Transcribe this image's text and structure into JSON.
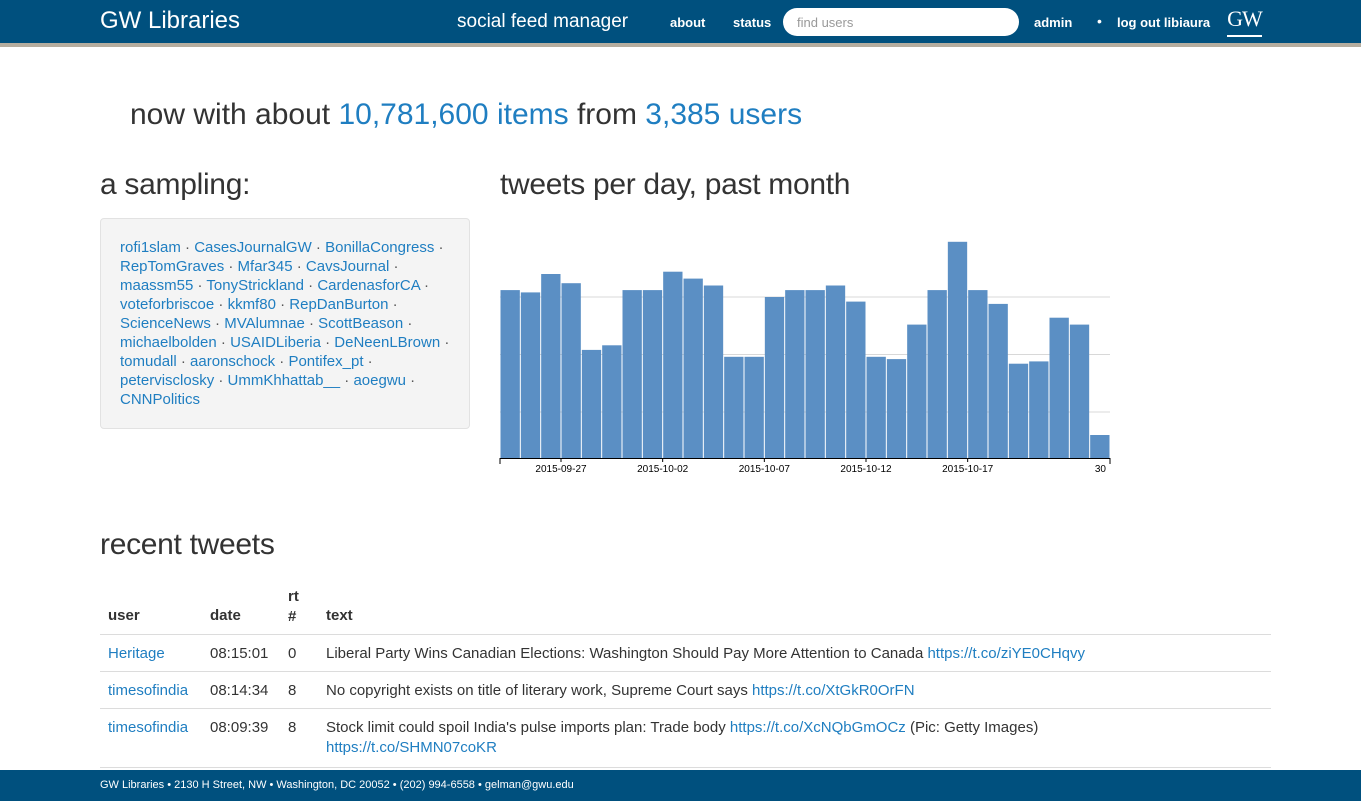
{
  "nav": {
    "brand": "GW Libraries",
    "app_name": "social feed manager",
    "about": "about",
    "status": "status",
    "search_placeholder": "find users",
    "admin": "admin",
    "dot": "•",
    "logout": "log out libiaura",
    "logo": "GW"
  },
  "hero": {
    "prefix": "now with about ",
    "items": "10,781,600 items",
    "middle": " from ",
    "users": "3,385 users"
  },
  "sampling": {
    "title": "a sampling:",
    "users": [
      "rofi1slam",
      "CasesJournalGW",
      "BonillaCongress",
      "RepTomGraves",
      "Mfar345",
      "CavsJournal",
      "maassm55",
      "TonyStrickland",
      "CardenasforCA",
      "voteforbriscoe",
      "kkmf80",
      "RepDanBurton",
      "ScienceNews",
      "MVAlumnae",
      "ScottBeason",
      "michaelbolden",
      "USAIDLiberia",
      "DeNeenLBrown",
      "tomudall",
      "aaronschock",
      "Pontifex_pt",
      "petervisclosky",
      "UmmKhhattab__",
      "aoegwu",
      "CNNPolitics"
    ]
  },
  "chart_title": "tweets per day, past month",
  "chart_data": {
    "type": "bar",
    "title": "tweets per day, past month",
    "x_tick_labels": [
      "2015-09-27",
      "2015-10-02",
      "2015-10-07",
      "2015-10-12",
      "2015-10-17",
      "30"
    ],
    "values": [
      0.73,
      0.72,
      0.8,
      0.76,
      0.47,
      0.49,
      0.73,
      0.73,
      0.81,
      0.78,
      0.75,
      0.44,
      0.44,
      0.7,
      0.73,
      0.73,
      0.75,
      0.68,
      0.44,
      0.43,
      0.58,
      0.73,
      0.94,
      0.73,
      0.67,
      0.41,
      0.42,
      0.61,
      0.58,
      0.1
    ],
    "ylim": [
      0,
      1.0
    ],
    "grid": true,
    "color": "#5b8fc4"
  },
  "recent": {
    "title": "recent tweets",
    "headers": {
      "user": "user",
      "date": "date",
      "rt": "rt\n#",
      "text": "text"
    },
    "rows": [
      {
        "user": "Heritage",
        "date": "08:15:01",
        "rt": "0",
        "text": "Liberal Party Wins Canadian Elections: Washington Should Pay More Attention to Canada ",
        "link": "https://t.co/ziYE0CHqvy",
        "after": "",
        "link2": ""
      },
      {
        "user": "timesofindia",
        "date": "08:14:34",
        "rt": "8",
        "text": "No copyright exists on title of literary work, Supreme Court says ",
        "link": "https://t.co/XtGkR0OrFN",
        "after": "",
        "link2": ""
      },
      {
        "user": "timesofindia",
        "date": "08:09:39",
        "rt": "8",
        "text": "Stock limit could spoil India's pulse imports plan: Trade body ",
        "link": "https://t.co/XcNQbGmOCz",
        "after": " (Pic: Getty Images)",
        "link2": "https://t.co/SHMN07coKR"
      }
    ]
  },
  "footer": "GW Libraries • 2130 H Street, NW • Washington, DC 20052 • (202) 994-6558 • gelman@gwu.edu"
}
